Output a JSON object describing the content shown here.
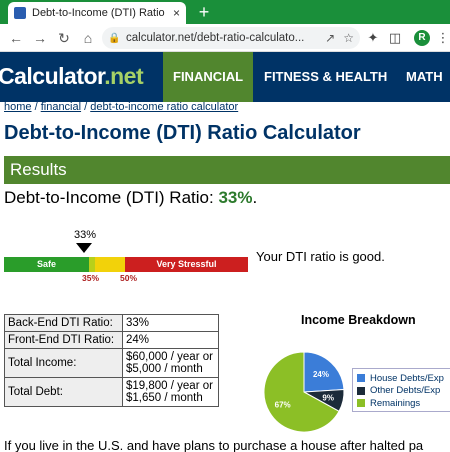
{
  "browser": {
    "tab_title": "Debt-to-Income (DTI) Ratio Calcu",
    "tab_close": "×",
    "new_tab": "+",
    "url": "calculator.net/debt-ratio-calculato...",
    "profile_initial": "R"
  },
  "site": {
    "logo_main": "Calculator",
    "logo_dot": ".",
    "logo_tld": "net",
    "nav": [
      "FINANCIAL",
      "FITNESS & HEALTH",
      "MATH"
    ]
  },
  "breadcrumb": {
    "home": "home",
    "sep1": " / ",
    "financial": "financial",
    "sep2": " / ",
    "current": "debt-to-income ratio calculator"
  },
  "page_title": "Debt-to-Income (DTI) Ratio Calculator",
  "results": {
    "header": "Results",
    "ratio_label": "Debt-to-Income (DTI) Ratio: ",
    "ratio_value": "33%",
    "ratio_suffix": "."
  },
  "gauge": {
    "marker_label": "33%",
    "marker_value": 33,
    "safe_label": "Safe",
    "stress_label": "Very Stressful",
    "tick_35": "35%",
    "tick_50": "50%",
    "message": "Your DTI ratio is good.",
    "colors": {
      "safe": "#2a9d2a",
      "caution": "#f2d20a",
      "stress": "#cc1f1f"
    }
  },
  "table": {
    "rows": [
      {
        "label": "Back-End DTI Ratio:",
        "value": "33%"
      },
      {
        "label": "Front-End DTI Ratio:",
        "value": "24%"
      },
      {
        "label": "Total Income:",
        "value_line1": "$60,000 / year or",
        "value_line2": "$5,000 / month"
      },
      {
        "label": "Total Debt:",
        "value_line1": "$19,800 / year or",
        "value_line2": "$1,650 / month"
      }
    ]
  },
  "chart_data": {
    "type": "pie",
    "title": "Income Breakdown",
    "categories": [
      "House Debts/Expenses",
      "Other Debts/Expenses",
      "Remainings"
    ],
    "legend_labels": [
      "House Debts/Exp",
      "Other Debts/Exp",
      "Remainings"
    ],
    "values": [
      24,
      9,
      67
    ],
    "slice_labels": [
      "24%",
      "9%",
      "67%"
    ],
    "colors": [
      "#3b7dd8",
      "#1c2b3a",
      "#8cbf26"
    ],
    "legend": "right"
  },
  "bottom_text": "If you live in the U.S. and have plans to purchase a house after halted pa"
}
